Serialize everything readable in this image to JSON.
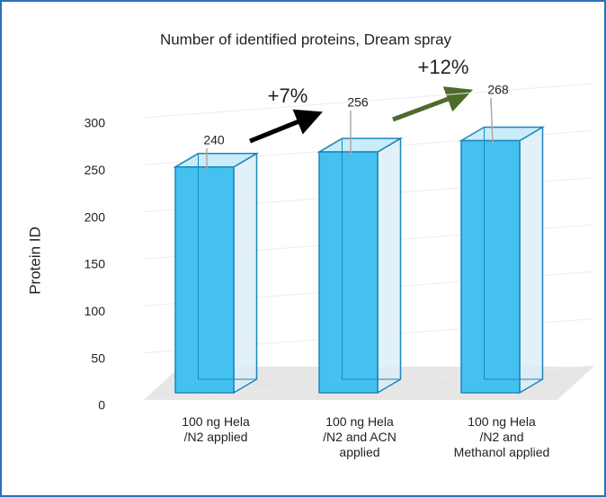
{
  "chart_data": {
    "type": "bar3d",
    "title": "Number of identified proteins, Dream spray",
    "y_label": "Protein ID",
    "categories": [
      "100 ng Hela\n/N2 applied",
      "100 ng Hela\n/N2 and ACN\napplied",
      "100 ng Hela\n/N2 and\nMethanol applied"
    ],
    "values": [
      240,
      256,
      268
    ],
    "color": "#45c1ef",
    "ylim": [
      0,
      300
    ],
    "yticks": [
      0,
      50,
      100,
      150,
      200,
      250,
      300
    ],
    "grid": true,
    "annotations": [
      "+7%",
      "+12%"
    ]
  }
}
